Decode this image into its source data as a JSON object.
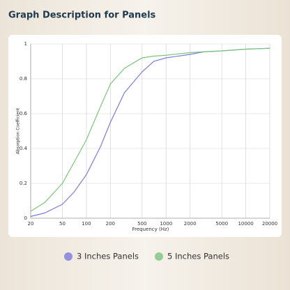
{
  "chart_data": {
    "type": "line",
    "title": "Graph Description for Panels",
    "x_label": "Frequency (Hz)",
    "y_label": "Absorption Coefficient",
    "x": [
      20,
      30,
      50,
      70,
      100,
      150,
      200,
      300,
      500,
      700,
      1000,
      2000,
      3000,
      5000,
      10000,
      20000
    ],
    "series": [
      {
        "name": "3 Inches Panels",
        "color": "#7b7be0",
        "values": [
          0.01,
          0.03,
          0.08,
          0.15,
          0.25,
          0.41,
          0.55,
          0.72,
          0.84,
          0.9,
          0.92,
          0.94,
          0.955,
          0.96,
          0.97,
          0.975
        ]
      },
      {
        "name": "5 Inches Panels",
        "color": "#7cc47c",
        "values": [
          0.04,
          0.09,
          0.2,
          0.32,
          0.45,
          0.64,
          0.77,
          0.86,
          0.92,
          0.93,
          0.935,
          0.95,
          0.955,
          0.96,
          0.97,
          0.975
        ]
      }
    ],
    "xscale": "log",
    "xlim": [
      20,
      20000
    ],
    "xticks": [
      20,
      50,
      100,
      200,
      500,
      1000,
      2000,
      5000,
      10000,
      20000
    ],
    "ylim": [
      0,
      1
    ],
    "yticks": [
      0,
      0.2,
      0.4,
      0.6,
      0.8,
      1
    ],
    "grid": true
  }
}
